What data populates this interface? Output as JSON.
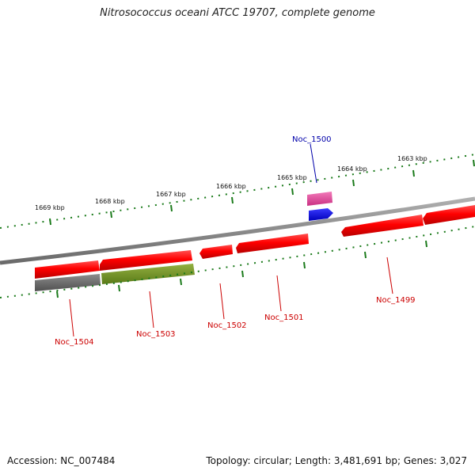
{
  "title": "Nitrosococcus oceani ATCC 19707, complete genome",
  "footer": {
    "accession": "Accession: NC_007484",
    "summary": "Topology: circular; Length: 3,481,691 bp; Genes: 3,027"
  },
  "ticks": [
    "1669 kbp",
    "1668 kbp",
    "1667 kbp",
    "1666 kbp",
    "1665 kbp",
    "1664 kbp",
    "1663 kbp"
  ],
  "genes": [
    "Noc_1500",
    "Noc_1504",
    "Noc_1503",
    "Noc_1502",
    "Noc_1501",
    "Noc_1499"
  ],
  "colors": {
    "cds_forward": "#ff0000",
    "cds_reverse": "#ff0000",
    "pseudo_gray": "#707070",
    "gene_olive": "#7a9a2a",
    "rna_pink": "#e8459e",
    "misc_blue": "#0000ee",
    "tick_green": "#1a7a1a",
    "backbone": "#8a8a8a"
  }
}
